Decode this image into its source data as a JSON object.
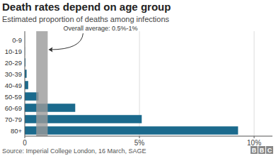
{
  "chart_data": {
    "type": "bar",
    "orientation": "horizontal",
    "title": "Death rates depend on age group",
    "subtitle": "Estimated proportion of deaths among infections",
    "categories": [
      "0-9",
      "10-19",
      "20-29",
      "30-39",
      "40-49",
      "50-59",
      "60-69",
      "70-79",
      "80+"
    ],
    "values": [
      0.002,
      0.006,
      0.03,
      0.08,
      0.15,
      0.6,
      2.2,
      5.1,
      9.3
    ],
    "color": "#1b6a8d",
    "xlim": [
      0,
      10.8
    ],
    "xticks": [
      0,
      {
        "value": 5,
        "label": "5%"
      },
      {
        "value": 10,
        "label": "10%"
      }
    ],
    "grid": true,
    "annotation": "Overall average: 0.5%-1%",
    "average_band": [
      0.5,
      1
    ],
    "source": "Source: Imperial College London, 16 March, SAGE",
    "logo": "BBC"
  }
}
